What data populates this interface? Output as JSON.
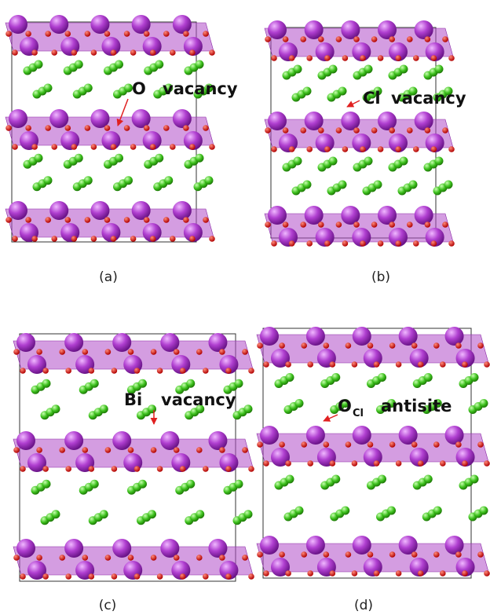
{
  "panels": [
    {
      "label": "(a)",
      "annotation": {
        "species": "O",
        "defect": "vacancy"
      }
    },
    {
      "label": "(b)",
      "annotation": {
        "species": "Cl",
        "defect": "vacancy"
      }
    },
    {
      "label": "(c)",
      "annotation": {
        "species": "Bi",
        "defect": "vacancy"
      }
    },
    {
      "label": "(d)",
      "annotation": {
        "species": "O",
        "subscript": "Cl",
        "defect": "antisite"
      }
    }
  ]
}
